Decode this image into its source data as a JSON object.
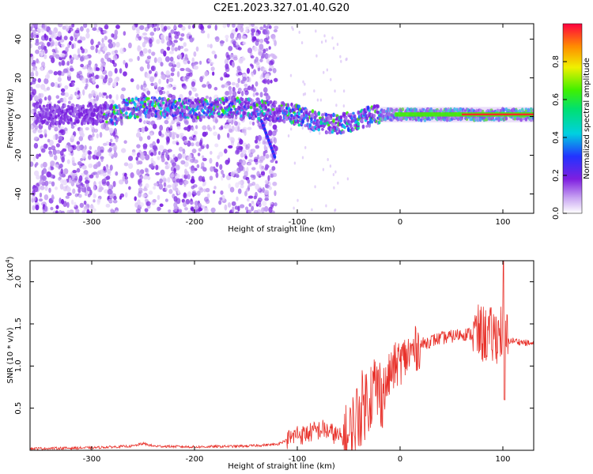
{
  "title": "C2E1.2023.327.01.40.G20",
  "chart_data": [
    {
      "type": "heatmap",
      "xlabel": "Height of straight line (km)",
      "ylabel": "Frequency (Hz)",
      "xlim": [
        -360,
        130
      ],
      "ylim": [
        -50,
        48
      ],
      "xticks": [
        -300,
        -200,
        -100,
        0,
        100
      ],
      "yticks": [
        -40,
        -20,
        0,
        20,
        40
      ],
      "ridge": [
        {
          "x": -270,
          "y": 4
        },
        {
          "x": -240,
          "y": 5
        },
        {
          "x": -200,
          "y": 4
        },
        {
          "x": -160,
          "y": 5
        },
        {
          "x": -130,
          "y": 3
        },
        {
          "x": -110,
          "y": 2
        },
        {
          "x": -95,
          "y": 0
        },
        {
          "x": -80,
          "y": -3
        },
        {
          "x": -60,
          "y": -4
        },
        {
          "x": -45,
          "y": -2
        },
        {
          "x": -30,
          "y": 0
        },
        {
          "x": -20,
          "y": 1
        },
        {
          "x": -5,
          "y": 1
        },
        {
          "x": 20,
          "y": 1
        },
        {
          "x": 60,
          "y": 1
        },
        {
          "x": 100,
          "y": 1
        },
        {
          "x": 130,
          "y": 1
        }
      ],
      "colorbar": {
        "label": "Normalized spectral amplitude",
        "range": [
          0,
          1
        ],
        "ticks": [
          "0.0",
          "0.2",
          "0.4",
          "0.6",
          "0.8"
        ]
      }
    },
    {
      "type": "line",
      "xlabel": "Height of straight line (km)",
      "ylabel": "SNR (10 * v/v)",
      "yscale_label": "(x10",
      "yscale_exp": "4",
      "yscale_close": ")",
      "xlim": [
        -360,
        130
      ],
      "ylim": [
        0,
        2.25
      ],
      "xticks": [
        -300,
        -200,
        -100,
        0,
        100
      ],
      "yticks": [
        "0.5",
        "1.0",
        "1.5",
        "2.0"
      ],
      "line_color": "#e8312a",
      "series": [
        {
          "x": [
            -360,
            -300,
            -260,
            -250,
            -240,
            -200,
            -150,
            -120,
            -105,
            -100,
            -95,
            -85,
            -75,
            -65,
            -55,
            -50,
            -45,
            -40,
            -35,
            -30,
            -25,
            -20,
            -15,
            -10,
            -5,
            0,
            10,
            20,
            30,
            40,
            50,
            60,
            70,
            80,
            90,
            95,
            100,
            102,
            105,
            110,
            120,
            130
          ],
          "y": [
            0.02,
            0.03,
            0.05,
            0.08,
            0.05,
            0.04,
            0.05,
            0.07,
            0.15,
            0.2,
            0.18,
            0.22,
            0.25,
            0.2,
            0.12,
            0.1,
            0.3,
            0.45,
            0.55,
            0.65,
            0.75,
            0.7,
            0.7,
            0.9,
            1.0,
            1.05,
            1.15,
            1.25,
            1.3,
            1.33,
            1.35,
            1.38,
            1.38,
            1.38,
            1.35,
            1.38,
            1.42,
            1.35,
            1.3,
            1.3,
            1.28,
            1.26
          ]
        }
      ]
    }
  ]
}
